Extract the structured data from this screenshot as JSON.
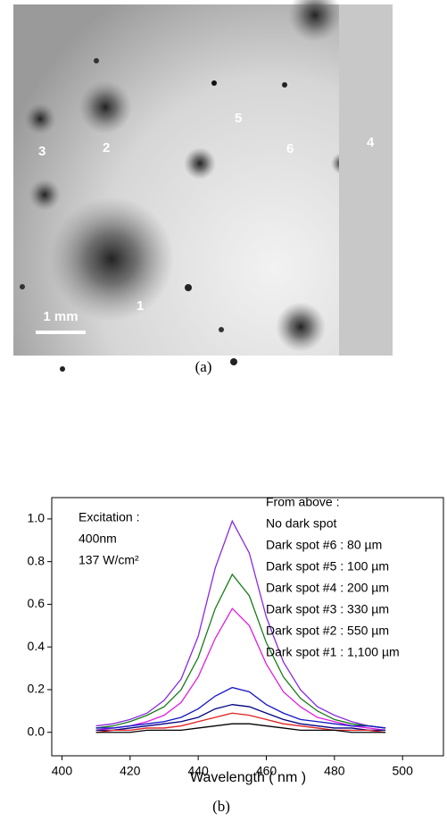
{
  "panel_a": {
    "spot_labels": [
      "1",
      "2",
      "3",
      "4",
      "5",
      "6"
    ],
    "scale_bar": "1 mm",
    "caption": "(a)"
  },
  "chart_data": {
    "type": "line",
    "caption": "(b)",
    "x_label": "Wavelength ( nm )",
    "annotations": [
      "Excitation :",
      "400nm",
      "137 W/cm²"
    ],
    "legend_title": "From above :",
    "x": [
      410,
      415,
      420,
      425,
      430,
      435,
      440,
      445,
      450,
      455,
      460,
      465,
      470,
      475,
      480,
      485,
      490,
      495
    ],
    "series": [
      {
        "name": "No dark spot",
        "color": "#8a2be2",
        "values": [
          0.03,
          0.04,
          0.06,
          0.09,
          0.15,
          0.25,
          0.45,
          0.77,
          0.99,
          0.84,
          0.54,
          0.33,
          0.2,
          0.12,
          0.08,
          0.05,
          0.03,
          0.02
        ]
      },
      {
        "name": "Dark spot #6 : 80 µm",
        "color": "#1a7a1a",
        "values": [
          0.02,
          0.03,
          0.05,
          0.08,
          0.12,
          0.2,
          0.35,
          0.58,
          0.74,
          0.64,
          0.42,
          0.26,
          0.16,
          0.1,
          0.06,
          0.04,
          0.03,
          0.02
        ]
      },
      {
        "name": "Dark spot #5 : 100 µm",
        "color": "#e020e0",
        "values": [
          0.01,
          0.02,
          0.03,
          0.05,
          0.08,
          0.14,
          0.26,
          0.44,
          0.58,
          0.5,
          0.32,
          0.19,
          0.12,
          0.07,
          0.05,
          0.03,
          0.02,
          0.01
        ]
      },
      {
        "name": "Dark spot #4 : 200 µm",
        "color": "#1414c8",
        "values": [
          0.02,
          0.02,
          0.03,
          0.04,
          0.05,
          0.07,
          0.11,
          0.17,
          0.21,
          0.19,
          0.13,
          0.09,
          0.06,
          0.05,
          0.04,
          0.03,
          0.03,
          0.02
        ]
      },
      {
        "name": "Dark spot #3 : 330 µm",
        "color": "#000080",
        "values": [
          0.01,
          0.01,
          0.02,
          0.03,
          0.04,
          0.05,
          0.07,
          0.11,
          0.13,
          0.12,
          0.09,
          0.06,
          0.04,
          0.03,
          0.02,
          0.02,
          0.01,
          0.01
        ]
      },
      {
        "name": "Dark spot #2 : 550 µm",
        "color": "#e02020",
        "values": [
          0,
          0.01,
          0.01,
          0.02,
          0.02,
          0.03,
          0.05,
          0.07,
          0.09,
          0.08,
          0.06,
          0.04,
          0.03,
          0.02,
          0.01,
          0.01,
          0.01,
          0
        ]
      },
      {
        "name": "Dark spot #1 : 1,100 µm",
        "color": "#000000",
        "values": [
          0,
          0,
          0,
          0.01,
          0.01,
          0.01,
          0.02,
          0.03,
          0.04,
          0.04,
          0.03,
          0.02,
          0.01,
          0.01,
          0.01,
          0,
          0,
          0
        ]
      }
    ],
    "xlim": [
      397,
      512
    ],
    "xticks": [
      400,
      420,
      440,
      460,
      480,
      500
    ],
    "ylim": [
      -0.11,
      1.1
    ],
    "yticks": [
      {
        "value": 0,
        "label": "0.0"
      },
      0.2,
      0.4,
      0.6,
      0.8,
      {
        "value": 1,
        "label": "1.0"
      }
    ]
  }
}
